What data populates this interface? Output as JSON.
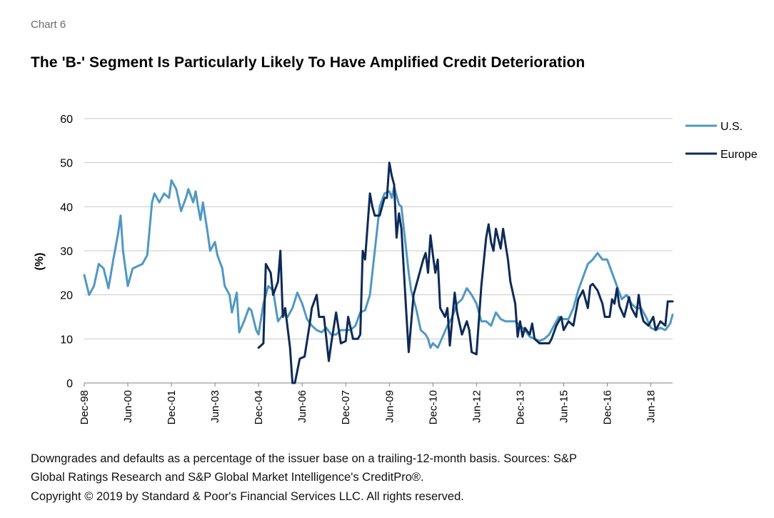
{
  "header": {
    "chart_label": "Chart 6",
    "title": "The 'B-' Segment Is Particularly Likely To Have Amplified Credit Deterioration"
  },
  "footnotes": {
    "line1": "Downgrades and defaults as a percentage of the issuer base on a trailing-12-month basis. Sources: S&P",
    "line2": "Global Ratings Research and S&P Global Market Intelligence's CreditPro®.",
    "line3": "Copyright © 2019 by Standard & Poor's Financial Services LLC. All rights reserved."
  },
  "colors": {
    "us": "#4f98c3",
    "europe": "#0d2a57",
    "grid": "#c8c8c8",
    "axis": "#808080"
  },
  "chart_data": {
    "type": "line",
    "title": "The 'B-' Segment Is Particularly Likely To Have Amplified Credit Deterioration",
    "xlabel": "",
    "ylabel": "(%)",
    "ylim": [
      0,
      60
    ],
    "yticks": [
      0,
      10,
      20,
      30,
      40,
      50,
      60
    ],
    "x_tick_labels": [
      "Dec-98",
      "Jun-00",
      "Dec-01",
      "Jun-03",
      "Dec-04",
      "Jun-06",
      "Dec-07",
      "Jun-09",
      "Dec-10",
      "Jun-12",
      "Dec-13",
      "Jun-15",
      "Dec-16",
      "Jun-18"
    ],
    "x_range": [
      "Dec-98",
      "Mar-19"
    ],
    "grid": "horizontal",
    "legend_position": "right",
    "series": [
      {
        "name": "U.S.",
        "color": "#4f98c3",
        "points": [
          [
            "Dec-98",
            24.5
          ],
          [
            "Feb-99",
            20
          ],
          [
            "Apr-99",
            22
          ],
          [
            "Jun-99",
            27
          ],
          [
            "Aug-99",
            26
          ],
          [
            "Oct-99",
            21.5
          ],
          [
            "Dec-99",
            28
          ],
          [
            "Feb-00",
            34
          ],
          [
            "Mar-00",
            38
          ],
          [
            "Apr-00",
            30
          ],
          [
            "Jun-00",
            22
          ],
          [
            "Aug-00",
            26
          ],
          [
            "Oct-00",
            26.5
          ],
          [
            "Dec-00",
            27
          ],
          [
            "Feb-01",
            29
          ],
          [
            "Apr-01",
            41
          ],
          [
            "May-01",
            43
          ],
          [
            "Jul-01",
            41
          ],
          [
            "Sep-01",
            43
          ],
          [
            "Nov-01",
            42
          ],
          [
            "Dec-01",
            46
          ],
          [
            "Feb-02",
            44
          ],
          [
            "Apr-02",
            39
          ],
          [
            "Jun-02",
            42
          ],
          [
            "Jul-02",
            44
          ],
          [
            "Sep-02",
            41
          ],
          [
            "Oct-02",
            43.5
          ],
          [
            "Nov-02",
            40
          ],
          [
            "Dec-02",
            37
          ],
          [
            "Jan-03",
            41
          ],
          [
            "Mar-03",
            34
          ],
          [
            "Apr-03",
            30
          ],
          [
            "Jun-03",
            32
          ],
          [
            "Jul-03",
            29
          ],
          [
            "Sep-03",
            26
          ],
          [
            "Oct-03",
            22
          ],
          [
            "Dec-03",
            20
          ],
          [
            "Jan-04",
            16
          ],
          [
            "Mar-04",
            20.5
          ],
          [
            "Apr-04",
            11.5
          ],
          [
            "Jun-04",
            14
          ],
          [
            "Aug-04",
            17
          ],
          [
            "Sep-04",
            16.5
          ],
          [
            "Nov-04",
            12
          ],
          [
            "Dec-04",
            11
          ],
          [
            "Feb-05",
            18
          ],
          [
            "Apr-05",
            22
          ],
          [
            "Jun-05",
            21
          ],
          [
            "Aug-05",
            14
          ],
          [
            "Oct-05",
            15.5
          ],
          [
            "Dec-05",
            15
          ],
          [
            "Feb-06",
            17
          ],
          [
            "Apr-06",
            20.5
          ],
          [
            "Jun-06",
            18
          ],
          [
            "Aug-06",
            14.5
          ],
          [
            "Oct-06",
            13
          ],
          [
            "Dec-06",
            12
          ],
          [
            "Feb-07",
            11.5
          ],
          [
            "Apr-07",
            12.5
          ],
          [
            "Jun-07",
            11
          ],
          [
            "Aug-07",
            11
          ],
          [
            "Oct-07",
            12
          ],
          [
            "Dec-07",
            12
          ],
          [
            "Feb-08",
            12
          ],
          [
            "Apr-08",
            13
          ],
          [
            "Jun-08",
            16
          ],
          [
            "Aug-08",
            16.5
          ],
          [
            "Oct-08",
            20
          ],
          [
            "Dec-08",
            30
          ],
          [
            "Feb-09",
            40
          ],
          [
            "Apr-09",
            43
          ],
          [
            "Jun-09",
            43.5
          ],
          [
            "Jul-09",
            42
          ],
          [
            "Aug-09",
            44.5
          ],
          [
            "Oct-09",
            40.5
          ],
          [
            "Nov-09",
            40
          ],
          [
            "Dec-09",
            35
          ],
          [
            "Feb-10",
            25
          ],
          [
            "Mar-10",
            21
          ],
          [
            "May-10",
            17
          ],
          [
            "Jul-10",
            12
          ],
          [
            "Sep-10",
            11
          ],
          [
            "Oct-10",
            10
          ],
          [
            "Nov-10",
            8
          ],
          [
            "Dec-10",
            9
          ],
          [
            "Feb-11",
            8
          ],
          [
            "Apr-11",
            10.5
          ],
          [
            "Jun-11",
            13
          ],
          [
            "Aug-11",
            15
          ],
          [
            "Oct-11",
            18
          ],
          [
            "Dec-11",
            19
          ],
          [
            "Feb-12",
            21.5
          ],
          [
            "Apr-12",
            20
          ],
          [
            "Jun-12",
            18
          ],
          [
            "Aug-12",
            14
          ],
          [
            "Oct-12",
            14
          ],
          [
            "Dec-12",
            13
          ],
          [
            "Feb-13",
            16
          ],
          [
            "Apr-13",
            14.5
          ],
          [
            "Jun-13",
            14
          ],
          [
            "Aug-13",
            14
          ],
          [
            "Oct-13",
            14
          ],
          [
            "Dec-13",
            13
          ],
          [
            "Feb-14",
            12
          ],
          [
            "Apr-14",
            10.5
          ],
          [
            "Jun-14",
            10
          ],
          [
            "Aug-14",
            9.5
          ],
          [
            "Oct-14",
            10
          ],
          [
            "Dec-14",
            11
          ],
          [
            "Feb-15",
            13
          ],
          [
            "Apr-15",
            15
          ],
          [
            "Jun-15",
            14.5
          ],
          [
            "Aug-15",
            14.5
          ],
          [
            "Oct-15",
            17
          ],
          [
            "Dec-15",
            21
          ],
          [
            "Feb-16",
            24
          ],
          [
            "Apr-16",
            27
          ],
          [
            "Jun-16",
            28
          ],
          [
            "Aug-16",
            29.5
          ],
          [
            "Oct-16",
            28
          ],
          [
            "Dec-16",
            28
          ],
          [
            "Feb-17",
            25
          ],
          [
            "Apr-17",
            22
          ],
          [
            "Jun-17",
            19
          ],
          [
            "Aug-17",
            20
          ],
          [
            "Oct-17",
            18
          ],
          [
            "Dec-17",
            17
          ],
          [
            "Feb-18",
            17
          ],
          [
            "Apr-18",
            15
          ],
          [
            "Jun-18",
            12.5
          ],
          [
            "Aug-18",
            12
          ],
          [
            "Oct-18",
            12.5
          ],
          [
            "Dec-18",
            12
          ],
          [
            "Feb-19",
            13.5
          ],
          [
            "Mar-19",
            15.5
          ]
        ]
      },
      {
        "name": "Europe",
        "color": "#0d2a57",
        "points": [
          [
            "Dec-04",
            8
          ],
          [
            "Feb-05",
            9
          ],
          [
            "Mar-05",
            27
          ],
          [
            "May-05",
            25
          ],
          [
            "Jun-05",
            20
          ],
          [
            "Aug-05",
            23
          ],
          [
            "Sep-05",
            30
          ],
          [
            "Oct-05",
            15
          ],
          [
            "Nov-05",
            17
          ],
          [
            "Jan-06",
            8
          ],
          [
            "Feb-06",
            0
          ],
          [
            "Mar-06",
            0
          ],
          [
            "May-06",
            5.5
          ],
          [
            "Jul-06",
            6
          ],
          [
            "Sep-06",
            13
          ],
          [
            "Oct-06",
            17
          ],
          [
            "Dec-06",
            20
          ],
          [
            "Jan-07",
            15
          ],
          [
            "Mar-07",
            15
          ],
          [
            "May-07",
            5
          ],
          [
            "Jun-07",
            9
          ],
          [
            "Aug-07",
            16
          ],
          [
            "Oct-07",
            9
          ],
          [
            "Dec-07",
            9.5
          ],
          [
            "Jan-08",
            15
          ],
          [
            "Mar-08",
            10
          ],
          [
            "May-08",
            10
          ],
          [
            "Jun-08",
            11
          ],
          [
            "Jul-08",
            30
          ],
          [
            "Aug-08",
            28
          ],
          [
            "Oct-08",
            43
          ],
          [
            "Nov-08",
            40
          ],
          [
            "Dec-08",
            38
          ],
          [
            "Feb-09",
            38
          ],
          [
            "Mar-09",
            40
          ],
          [
            "Apr-09",
            42
          ],
          [
            "May-09",
            42
          ],
          [
            "Jun-09",
            50
          ],
          [
            "Jul-09",
            47
          ],
          [
            "Aug-09",
            45
          ],
          [
            "Sep-09",
            33
          ],
          [
            "Oct-09",
            38.5
          ],
          [
            "Nov-09",
            35
          ],
          [
            "Jan-10",
            16
          ],
          [
            "Feb-10",
            7
          ],
          [
            "Apr-10",
            20
          ],
          [
            "Jun-10",
            24
          ],
          [
            "Aug-10",
            28
          ],
          [
            "Sep-10",
            29.5
          ],
          [
            "Oct-10",
            25
          ],
          [
            "Nov-10",
            33.5
          ],
          [
            "Dec-10",
            29
          ],
          [
            "Jan-11",
            25
          ],
          [
            "Feb-11",
            28
          ],
          [
            "Mar-11",
            17
          ],
          [
            "May-11",
            15
          ],
          [
            "Jun-11",
            17
          ],
          [
            "Jul-11",
            8.5
          ],
          [
            "Sep-11",
            20.5
          ],
          [
            "Oct-11",
            16
          ],
          [
            "Dec-11",
            11
          ],
          [
            "Feb-12",
            14
          ],
          [
            "Mar-12",
            12
          ],
          [
            "Apr-12",
            7
          ],
          [
            "Jun-12",
            6.5
          ],
          [
            "Aug-12",
            22
          ],
          [
            "Oct-12",
            33
          ],
          [
            "Nov-12",
            36
          ],
          [
            "Dec-12",
            32
          ],
          [
            "Jan-13",
            30
          ],
          [
            "Feb-13",
            35
          ],
          [
            "Apr-13",
            30.5
          ],
          [
            "May-13",
            35
          ],
          [
            "Jul-13",
            28
          ],
          [
            "Aug-13",
            23
          ],
          [
            "Oct-13",
            18
          ],
          [
            "Nov-13",
            10.5
          ],
          [
            "Dec-13",
            14
          ],
          [
            "Jan-14",
            10.5
          ],
          [
            "Feb-14",
            12.5
          ],
          [
            "Apr-14",
            11
          ],
          [
            "May-14",
            13.5
          ],
          [
            "Jun-14",
            10
          ],
          [
            "Aug-14",
            9
          ],
          [
            "Oct-14",
            9
          ],
          [
            "Dec-14",
            9
          ],
          [
            "Jan-15",
            10
          ],
          [
            "Mar-15",
            13
          ],
          [
            "May-15",
            15
          ],
          [
            "Jun-15",
            12
          ],
          [
            "Aug-15",
            14
          ],
          [
            "Oct-15",
            13
          ],
          [
            "Dec-15",
            19
          ],
          [
            "Feb-16",
            21
          ],
          [
            "Apr-16",
            17
          ],
          [
            "May-16",
            22
          ],
          [
            "Jun-16",
            22.5
          ],
          [
            "Aug-16",
            21
          ],
          [
            "Oct-16",
            18
          ],
          [
            "Nov-16",
            15
          ],
          [
            "Jan-17",
            15
          ],
          [
            "Feb-17",
            19
          ],
          [
            "Mar-17",
            18
          ],
          [
            "Apr-17",
            21.5
          ],
          [
            "May-17",
            17.5
          ],
          [
            "Jul-17",
            15
          ],
          [
            "Sep-17",
            19.5
          ],
          [
            "Oct-17",
            17
          ],
          [
            "Dec-17",
            15
          ],
          [
            "Jan-18",
            20
          ],
          [
            "Feb-18",
            16
          ],
          [
            "Mar-18",
            14
          ],
          [
            "May-18",
            13
          ],
          [
            "Jul-18",
            15
          ],
          [
            "Aug-18",
            12
          ],
          [
            "Oct-18",
            14
          ],
          [
            "Dec-18",
            13
          ],
          [
            "Jan-19",
            18.5
          ],
          [
            "Mar-19",
            18.5
          ]
        ]
      }
    ]
  }
}
